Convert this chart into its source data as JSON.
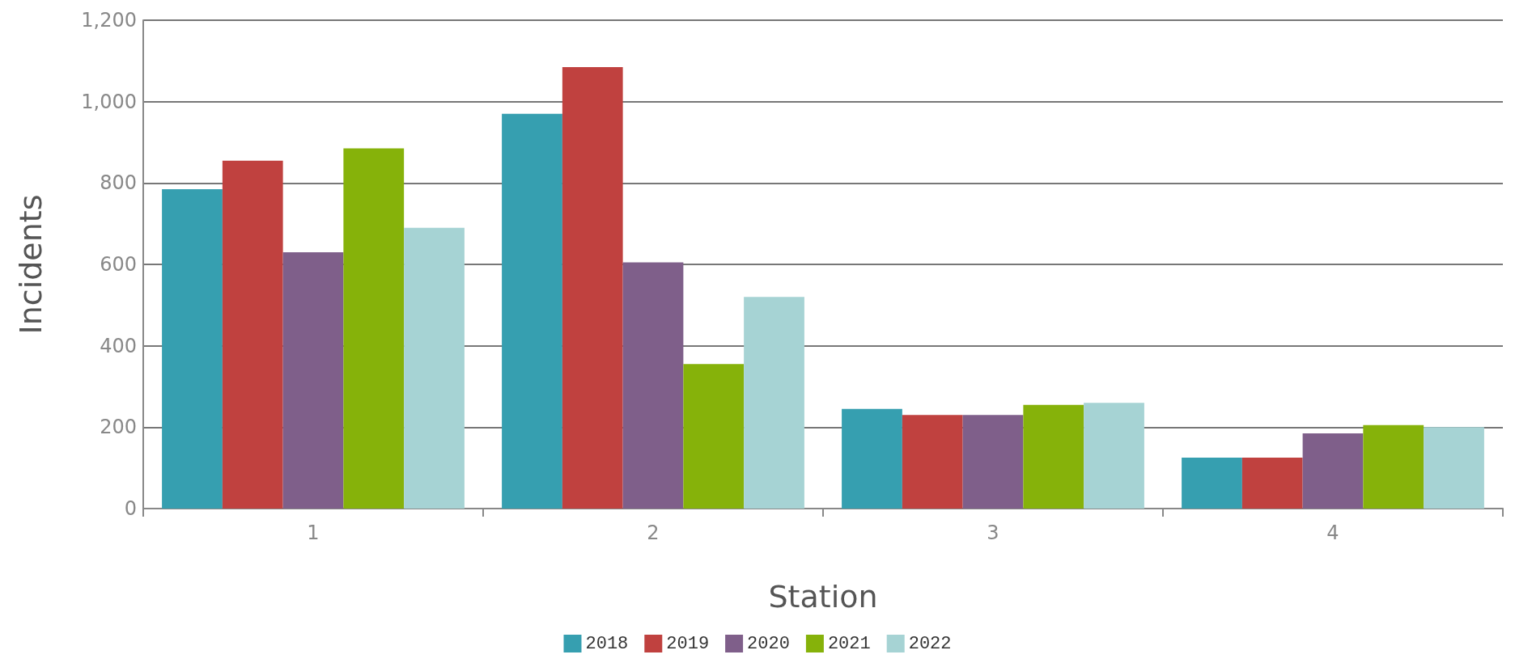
{
  "chart_data": {
    "type": "bar",
    "xlabel": "Station",
    "ylabel": "Incidents",
    "categories": [
      "1",
      "2",
      "3",
      "4"
    ],
    "series": [
      {
        "name": "2018",
        "color": "#369fb0",
        "values": [
          785,
          970,
          245,
          125
        ]
      },
      {
        "name": "2019",
        "color": "#c0413f",
        "values": [
          855,
          1085,
          230,
          125
        ]
      },
      {
        "name": "2020",
        "color": "#7f5f8a",
        "values": [
          630,
          605,
          230,
          185
        ]
      },
      {
        "name": "2021",
        "color": "#86b20a",
        "values": [
          885,
          355,
          255,
          205
        ]
      },
      {
        "name": "2022",
        "color": "#a6d3d4",
        "values": [
          690,
          520,
          260,
          200
        ]
      }
    ],
    "ylim": [
      0,
      1200
    ],
    "yticks": [
      0,
      200,
      400,
      600,
      800,
      {
        "value": 1000,
        "label": "1,000"
      },
      {
        "value": 1200,
        "label": "1,200"
      }
    ],
    "grid": "y",
    "legend": "bottom"
  }
}
